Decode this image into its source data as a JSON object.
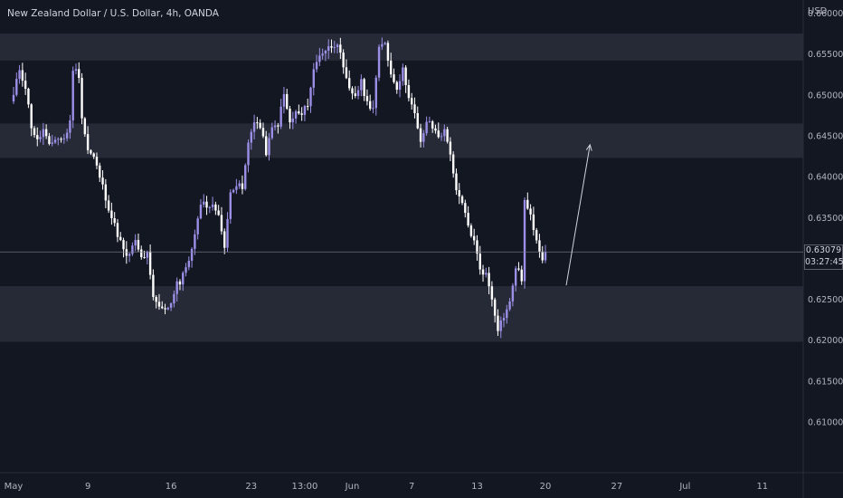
{
  "header": {
    "title": "New Zealand Dollar / U.S. Dollar, 4h, OANDA",
    "currency": "USD"
  },
  "price_tag": {
    "price": "0.63079",
    "countdown": "03:27:45"
  },
  "colors": {
    "background": "#131722",
    "zone": "#2a2e39",
    "candle_up": "#9c8fe8",
    "candle_down": "#ffffff",
    "axis_text": "#b2b5be",
    "arrow": "#d1d4dc"
  },
  "chart_data": {
    "type": "candlestick",
    "symbol": "NZDUSD",
    "timeframe": "4h",
    "ylim": [
      0.61,
      0.66
    ],
    "y_ticks": [
      "0.66000",
      "0.65500",
      "0.65000",
      "0.64500",
      "0.64000",
      "0.63500",
      "0.63000",
      "0.62500",
      "0.62000",
      "0.61500",
      "0.61000"
    ],
    "x_ticks": [
      {
        "label": "May",
        "bar": 0
      },
      {
        "label": "9",
        "bar": 25
      },
      {
        "label": "16",
        "bar": 53
      },
      {
        "label": "23",
        "bar": 80
      },
      {
        "label": "13:00",
        "bar": 98
      },
      {
        "label": "Jun",
        "bar": 114
      },
      {
        "label": "7",
        "bar": 134
      },
      {
        "label": "13",
        "bar": 156
      },
      {
        "label": "20",
        "bar": 179
      },
      {
        "label": "27",
        "bar": 203
      },
      {
        "label": "Jul",
        "bar": 226
      },
      {
        "label": "11",
        "bar": 252
      }
    ],
    "last_price": 0.63079,
    "zones": [
      {
        "from": 0.6542,
        "to": 0.6575
      },
      {
        "from": 0.6423,
        "to": 0.6465
      },
      {
        "from": 0.6198,
        "to": 0.6266
      }
    ],
    "arrow": {
      "from": {
        "bar": 186,
        "price": 0.6267
      },
      "to": {
        "bar": 194,
        "price": 0.6439
      }
    },
    "anchors": [
      [
        0,
        0.65
      ],
      [
        2,
        0.6532
      ],
      [
        4,
        0.651
      ],
      [
        6,
        0.6462
      ],
      [
        8,
        0.6443
      ],
      [
        10,
        0.6457
      ],
      [
        12,
        0.6436
      ],
      [
        14,
        0.6447
      ],
      [
        17,
        0.6446
      ],
      [
        19,
        0.6466
      ],
      [
        20,
        0.6533
      ],
      [
        22,
        0.6525
      ],
      [
        23,
        0.6473
      ],
      [
        25,
        0.6432
      ],
      [
        27,
        0.6423
      ],
      [
        29,
        0.64
      ],
      [
        31,
        0.6375
      ],
      [
        33,
        0.635
      ],
      [
        36,
        0.632
      ],
      [
        38,
        0.63
      ],
      [
        41,
        0.632
      ],
      [
        43,
        0.63
      ],
      [
        45,
        0.6305
      ],
      [
        47,
        0.625
      ],
      [
        50,
        0.6237
      ],
      [
        53,
        0.6245
      ],
      [
        55,
        0.6273
      ],
      [
        56,
        0.6268
      ],
      [
        58,
        0.629
      ],
      [
        60,
        0.631
      ],
      [
        62,
        0.6345
      ],
      [
        63,
        0.637
      ],
      [
        65,
        0.6365
      ],
      [
        67,
        0.6363
      ],
      [
        69,
        0.6357
      ],
      [
        71,
        0.631
      ],
      [
        73,
        0.6385
      ],
      [
        75,
        0.639
      ],
      [
        77,
        0.6385
      ],
      [
        79,
        0.644
      ],
      [
        81,
        0.647
      ],
      [
        83,
        0.646
      ],
      [
        85,
        0.643
      ],
      [
        87,
        0.6458
      ],
      [
        89,
        0.6465
      ],
      [
        91,
        0.65
      ],
      [
        93,
        0.6465
      ],
      [
        95,
        0.6478
      ],
      [
        97,
        0.6475
      ],
      [
        99,
        0.649
      ],
      [
        101,
        0.653
      ],
      [
        103,
        0.655
      ],
      [
        105,
        0.6555
      ],
      [
        107,
        0.656
      ],
      [
        109,
        0.6565
      ],
      [
        111,
        0.653
      ],
      [
        113,
        0.6505
      ],
      [
        115,
        0.65
      ],
      [
        117,
        0.6515
      ],
      [
        119,
        0.649
      ],
      [
        121,
        0.6485
      ],
      [
        123,
        0.6555
      ],
      [
        125,
        0.6565
      ],
      [
        127,
        0.6525
      ],
      [
        129,
        0.651
      ],
      [
        131,
        0.653
      ],
      [
        133,
        0.65
      ],
      [
        135,
        0.6475
      ],
      [
        137,
        0.644
      ],
      [
        139,
        0.6468
      ],
      [
        141,
        0.646
      ],
      [
        143,
        0.645
      ],
      [
        145,
        0.6455
      ],
      [
        147,
        0.643
      ],
      [
        149,
        0.638
      ],
      [
        151,
        0.6366
      ],
      [
        153,
        0.634
      ],
      [
        155,
        0.632
      ],
      [
        157,
        0.6288
      ],
      [
        159,
        0.628
      ],
      [
        161,
        0.6252
      ],
      [
        163,
        0.6215
      ],
      [
        165,
        0.623
      ],
      [
        167,
        0.6245
      ],
      [
        169,
        0.629
      ],
      [
        171,
        0.6275
      ],
      [
        172,
        0.637
      ],
      [
        174,
        0.635
      ],
      [
        176,
        0.6325
      ],
      [
        178,
        0.63
      ],
      [
        179,
        0.6308
      ]
    ]
  }
}
